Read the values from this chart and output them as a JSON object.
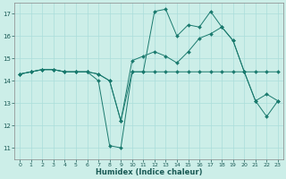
{
  "xlabel": "Humidex (Indice chaleur)",
  "bg_color": "#cceee8",
  "grid_color": "#aaddda",
  "line_color": "#1a7a6e",
  "xlim": [
    -0.5,
    23.5
  ],
  "ylim": [
    10.5,
    17.5
  ],
  "yticks": [
    11,
    12,
    13,
    14,
    15,
    16,
    17
  ],
  "xticks": [
    0,
    1,
    2,
    3,
    4,
    5,
    6,
    7,
    8,
    9,
    10,
    11,
    12,
    13,
    14,
    15,
    16,
    17,
    18,
    19,
    20,
    21,
    22,
    23
  ],
  "series": [
    [
      14.3,
      14.4,
      14.5,
      14.5,
      14.4,
      14.4,
      14.4,
      14.0,
      11.1,
      11.0,
      14.4,
      14.4,
      17.1,
      17.2,
      16.0,
      16.5,
      16.4,
      17.1,
      16.4,
      15.8,
      14.4,
      13.1,
      12.4,
      13.1
    ],
    [
      14.3,
      14.4,
      14.5,
      14.5,
      14.4,
      14.4,
      14.4,
      14.3,
      14.0,
      12.2,
      14.4,
      14.4,
      14.4,
      14.4,
      14.4,
      14.4,
      14.4,
      14.4,
      14.4,
      14.4,
      14.4,
      14.4,
      14.4,
      14.4
    ],
    [
      14.3,
      14.4,
      14.5,
      14.5,
      14.4,
      14.4,
      14.4,
      14.3,
      14.0,
      12.2,
      14.9,
      15.1,
      15.3,
      15.1,
      14.8,
      15.3,
      15.9,
      16.1,
      16.4,
      15.8,
      14.4,
      13.1,
      13.4,
      13.1
    ]
  ]
}
